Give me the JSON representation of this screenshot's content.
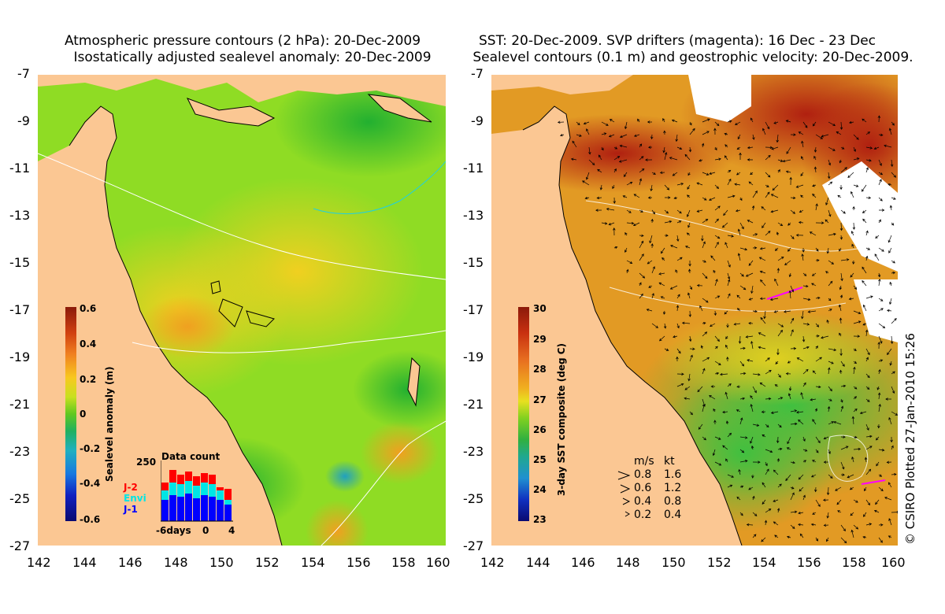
{
  "left_panel": {
    "title_line1": "Atmospheric pressure contours (2 hPa): 20-Dec-2009",
    "title_line2": "Isostatically adjusted sealevel anomaly: 20-Dec-2009",
    "colorbar": {
      "title": "Sealevel anomaly (m)",
      "ticks": [
        "0.6",
        "0.4",
        "0.2",
        "0",
        "-0.2",
        "-0.4",
        "-0.6"
      ]
    },
    "data_count": {
      "title": "Data count",
      "ymax_label": "250",
      "series": [
        "J-2",
        "Envi",
        "J-1"
      ],
      "series_colors": [
        "#ff0000",
        "#00e5e5",
        "#0000ff"
      ],
      "x_labels": [
        "-6days",
        "0",
        "4"
      ]
    }
  },
  "right_panel": {
    "title_line1": "SST: 20-Dec-2009. SVP drifters (magenta): 16 Dec - 23 Dec",
    "title_line2": "Sealevel contours (0.1 m) and geostrophic velocity: 20-Dec-2009.",
    "colorbar": {
      "title": "3-day SST composite (deg C)",
      "ticks": [
        "30",
        "29",
        "28",
        "27",
        "26",
        "25",
        "24",
        "23"
      ]
    },
    "velocity_legend": {
      "header_ms": "m/s",
      "header_kt": "kt",
      "rows": [
        {
          "ms": "0.8",
          "kt": "1.6"
        },
        {
          "ms": "0.6",
          "kt": "1.2"
        },
        {
          "ms": "0.4",
          "kt": "0.8"
        },
        {
          "ms": "0.2",
          "kt": "0.4"
        }
      ]
    }
  },
  "axes": {
    "y_labels": [
      "-7",
      "-9",
      "-11",
      "-13",
      "-15",
      "-17",
      "-19",
      "-21",
      "-23",
      "-25",
      "-27"
    ],
    "x_labels": [
      "142",
      "144",
      "146",
      "148",
      "150",
      "152",
      "154",
      "156",
      "158",
      "160"
    ]
  },
  "copyright": "© CSIRO Plotted 27-Jan-2010 15:26",
  "colors": {
    "land": "#fbc793",
    "sla_base": "#88dd22",
    "sst_base": "#e8a020"
  }
}
